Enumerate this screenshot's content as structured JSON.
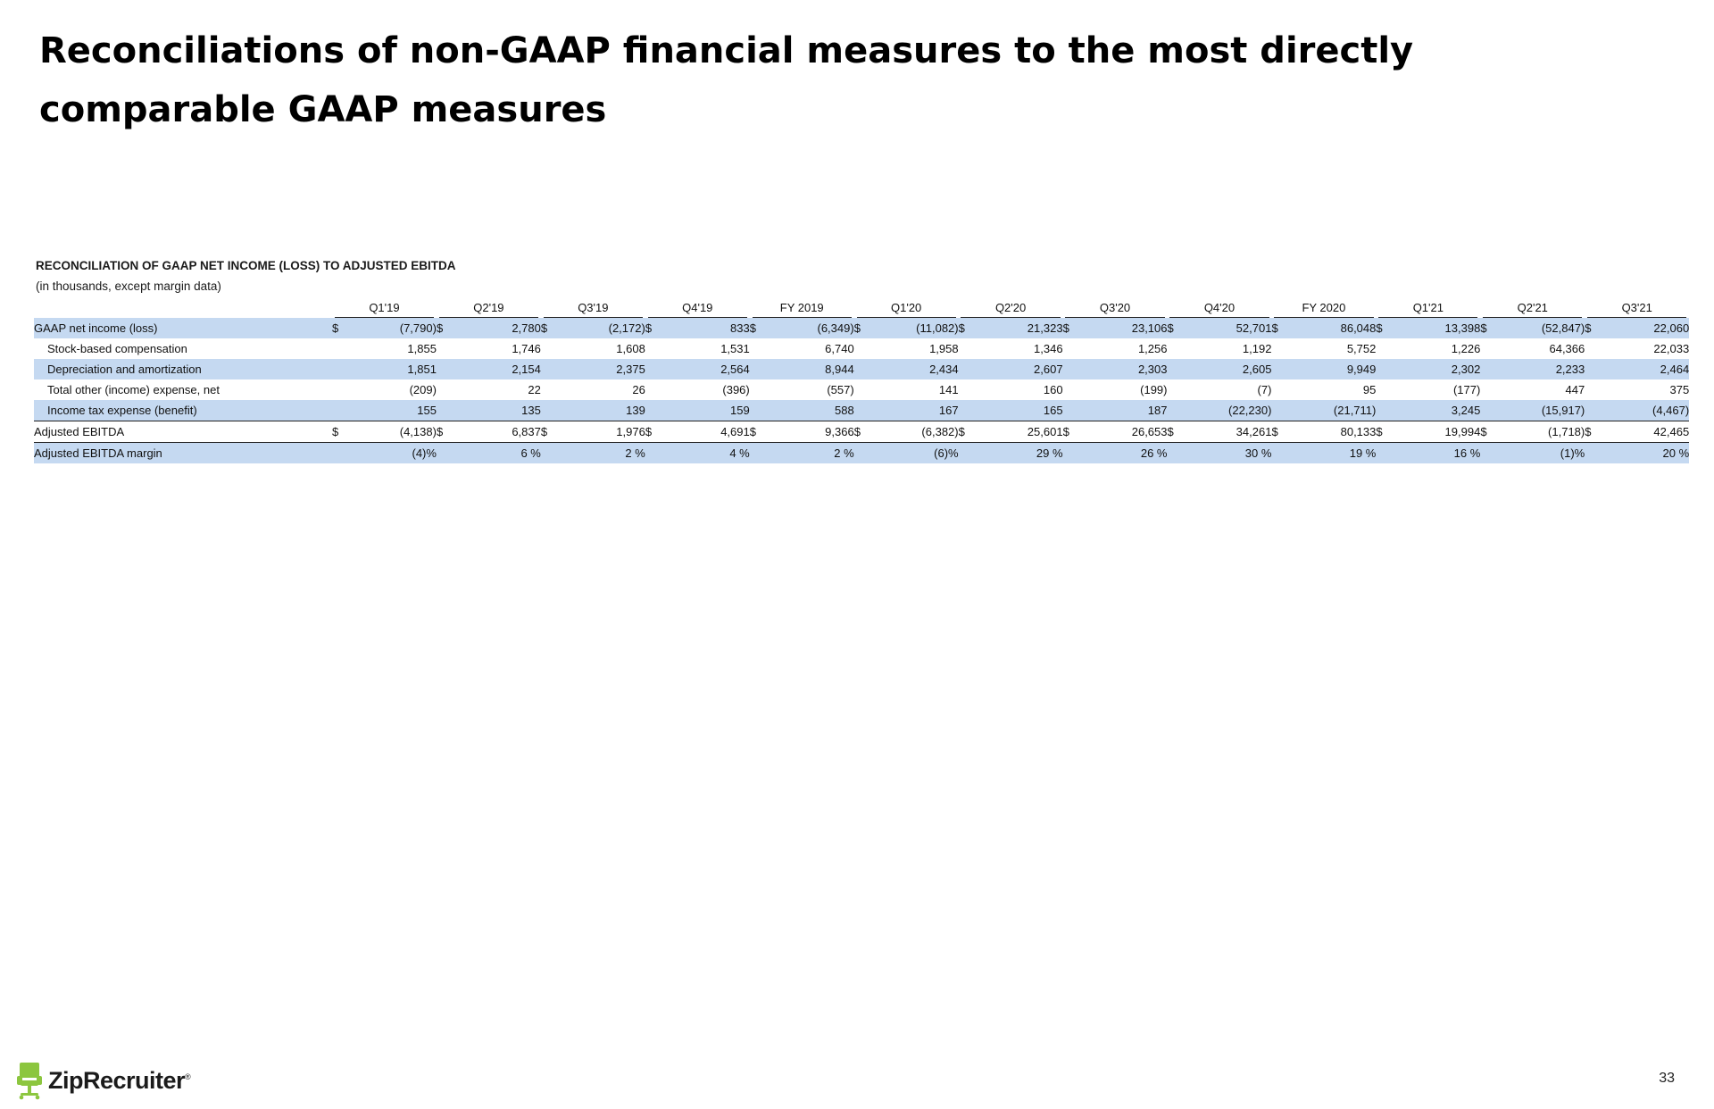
{
  "page": {
    "title": "Reconciliations of non-GAAP financial measures to the most directly comparable GAAP measures",
    "page_number": "33"
  },
  "table": {
    "heading": "RECONCILIATION OF GAAP NET INCOME (LOSS) TO ADJUSTED EBITDA",
    "subheading": "(in thousands, except margin data)",
    "columns": [
      "Q1'19",
      "Q2'19",
      "Q3'19",
      "Q4'19",
      "FY 2019",
      "Q1'20",
      "Q2'20",
      "Q3'20",
      "Q4'20",
      "FY 2020",
      "Q1'21",
      "Q2'21",
      "Q3'21"
    ],
    "rows": [
      {
        "label": "GAAP net income (loss)",
        "indent": false,
        "shaded": true,
        "currency": true,
        "style": "",
        "values": [
          "(7,790)",
          "2,780",
          "(2,172)",
          "833",
          "(6,349)",
          "(11,082)",
          "21,323",
          "23,106",
          "52,701",
          "86,048",
          "13,398",
          "(52,847)",
          "22,060"
        ]
      },
      {
        "label": "Stock-based compensation",
        "indent": true,
        "shaded": false,
        "currency": false,
        "style": "",
        "values": [
          "1,855",
          "1,746",
          "1,608",
          "1,531",
          "6,740",
          "1,958",
          "1,346",
          "1,256",
          "1,192",
          "5,752",
          "1,226",
          "64,366",
          "22,033"
        ]
      },
      {
        "label": "Depreciation and amortization",
        "indent": true,
        "shaded": true,
        "currency": false,
        "style": "",
        "values": [
          "1,851",
          "2,154",
          "2,375",
          "2,564",
          "8,944",
          "2,434",
          "2,607",
          "2,303",
          "2,605",
          "9,949",
          "2,302",
          "2,233",
          "2,464"
        ]
      },
      {
        "label": "Total other (income) expense, net",
        "indent": true,
        "shaded": false,
        "currency": false,
        "style": "",
        "values": [
          "(209)",
          "22",
          "26",
          "(396)",
          "(557)",
          "141",
          "160",
          "(199)",
          "(7)",
          "95",
          "(177)",
          "447",
          "375"
        ]
      },
      {
        "label": "Income tax expense (benefit)",
        "indent": true,
        "shaded": true,
        "currency": false,
        "style": "",
        "values": [
          "155",
          "135",
          "139",
          "159",
          "588",
          "167",
          "165",
          "187",
          "(22,230)",
          "(21,711)",
          "3,245",
          "(15,917)",
          "(4,467)"
        ]
      },
      {
        "label": "Adjusted EBITDA",
        "indent": false,
        "shaded": false,
        "currency": true,
        "style": "total",
        "values": [
          "(4,138)",
          "6,837",
          "1,976",
          "4,691",
          "9,366",
          "(6,382)",
          "25,601",
          "26,653",
          "34,261",
          "80,133",
          "19,994",
          "(1,718)",
          "42,465"
        ]
      },
      {
        "label": "Adjusted EBITDA margin",
        "indent": false,
        "shaded": true,
        "currency": false,
        "style": "margin",
        "values": [
          "(4)%",
          "6 %",
          "2 %",
          "4 %",
          "2 %",
          "(6)%",
          "29 %",
          "26 %",
          "30 %",
          "19 %",
          "16 %",
          "(1)%",
          "20 %"
        ]
      }
    ],
    "currency_symbol": "$"
  },
  "footer": {
    "logo_text": "ZipRecruiter",
    "logo_mark": "®",
    "logo_icon": "chair-icon",
    "brand_color": "#8cc63f"
  }
}
